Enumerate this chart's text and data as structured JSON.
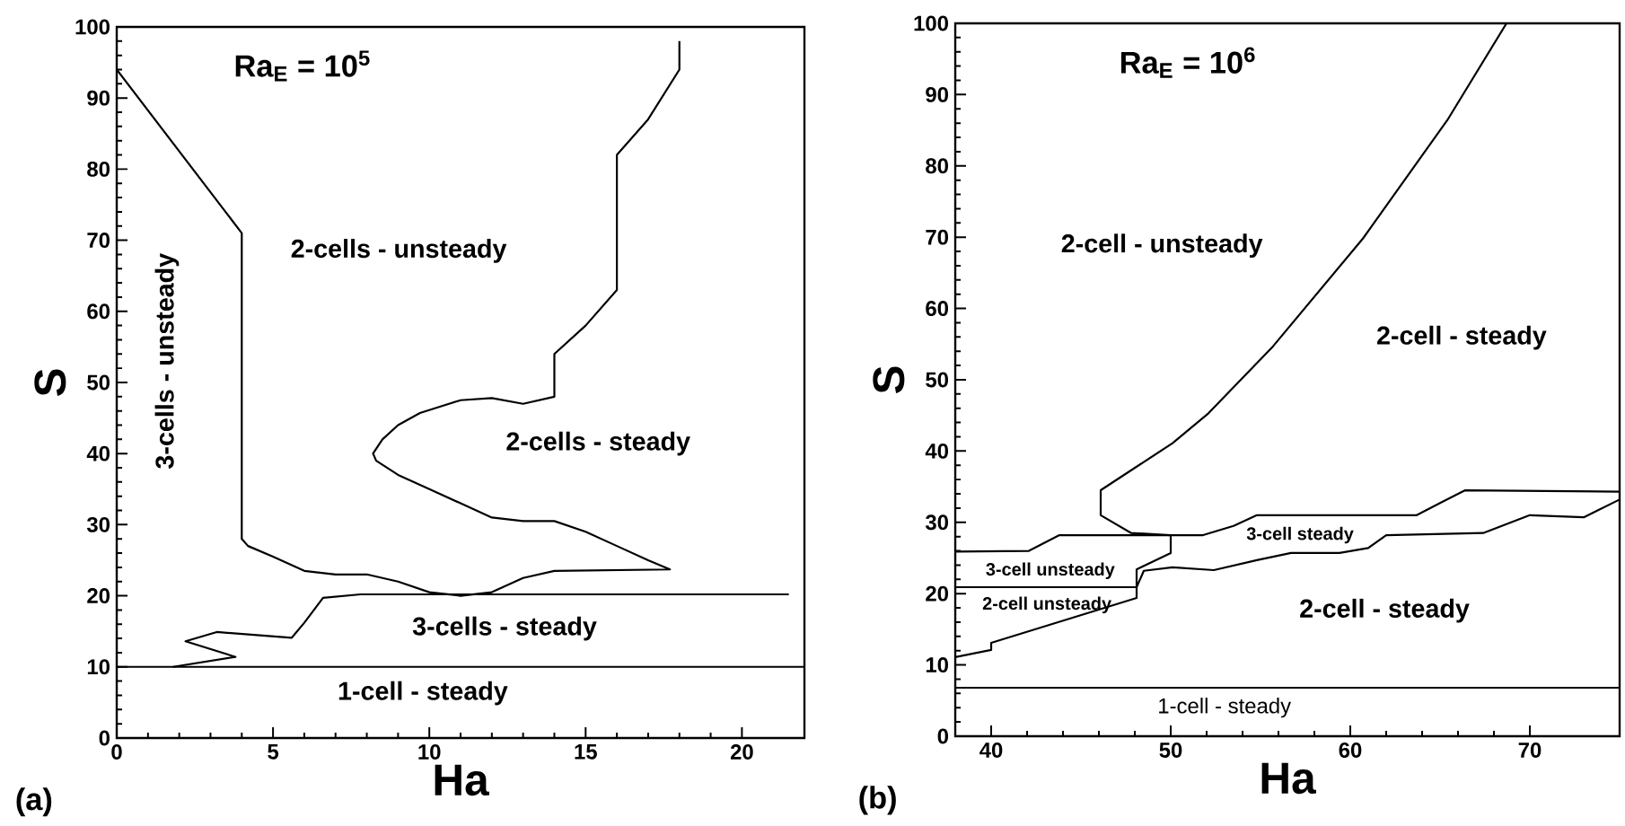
{
  "chart_data": [
    {
      "type": "line",
      "title": "Ra$_{E}$ = 10$^{5}$",
      "xlabel": "Ha",
      "ylabel": "S",
      "xlim": [
        0,
        22
      ],
      "ylim": [
        0,
        100
      ],
      "xticks": [
        0,
        5,
        10,
        15,
        20
      ],
      "yticks": [
        0,
        10,
        20,
        30,
        40,
        50,
        60,
        70,
        80,
        90,
        100
      ],
      "series": [
        {
          "color": "#000000",
          "x": [
            0,
            4,
            4,
            4.2,
            5,
            6,
            7,
            8,
            9,
            10,
            11,
            12,
            13,
            14,
            17.7,
            17,
            16,
            15,
            14,
            13,
            12,
            11,
            10,
            9,
            8.3,
            8.2,
            8.5,
            9,
            9.7,
            11,
            12,
            13,
            14,
            14,
            15,
            16,
            16,
            17,
            18,
            18
          ],
          "values": [
            94,
            71,
            28,
            27,
            25.5,
            23.5,
            23,
            23,
            22,
            20.5,
            20,
            20.5,
            22.5,
            23.5,
            23.7,
            25,
            27,
            29,
            30.5,
            30.5,
            31,
            33,
            35,
            37,
            39,
            40,
            42,
            44,
            45.7,
            47.5,
            47.8,
            47,
            48,
            54,
            58,
            63,
            82,
            87,
            94,
            98
          ]
        },
        {
          "color": "#000000",
          "x": [
            1.8,
            3.8,
            2.2,
            3.2,
            5.6,
            6.0,
            6.6,
            7.8,
            21.5
          ],
          "values": [
            10,
            11.4,
            13.6,
            14.9,
            14.1,
            16.2,
            19.7,
            20.2,
            20.2
          ]
        },
        {
          "color": "#000000",
          "x": [
            0,
            22
          ],
          "values": [
            10,
            10
          ]
        }
      ],
      "annotations": [
        "2-cells - unsteady",
        "2-cells - steady",
        "3-cells - unsteady",
        "3-cells - steady",
        "1-cell - steady",
        "(a)"
      ]
    },
    {
      "type": "line",
      "title": "Ra$_{E}$ = 10$^{6}$",
      "xlabel": "Ha",
      "ylabel": "S",
      "xlim": [
        38,
        75
      ],
      "ylim": [
        0,
        100
      ],
      "xticks": [
        40,
        50,
        60,
        70
      ],
      "yticks": [
        0,
        10,
        20,
        30,
        40,
        50,
        60,
        70,
        80,
        90,
        100
      ],
      "series": [
        {
          "color": "#000000",
          "x": [
            68.7,
            65.4,
            60.7,
            55.7,
            52.1,
            50.1,
            46.1,
            46.1,
            47.8,
            50,
            50,
            48.1,
            48.1,
            38
          ],
          "values": [
            100,
            86.4,
            69.8,
            54.7,
            45.3,
            41.1,
            34.5,
            31,
            28.5,
            28.2,
            25.7,
            23.4,
            20.9,
            20.9
          ]
        },
        {
          "color": "#000000",
          "x": [
            38,
            42.1,
            43.8,
            50,
            51.8,
            53.5,
            54.8,
            63.7,
            65,
            66.4,
            75
          ],
          "values": [
            25.9,
            26,
            28.2,
            28.2,
            28.2,
            29.5,
            31,
            31,
            32.7,
            34.5,
            34.3
          ]
        },
        {
          "color": "#000000",
          "x": [
            38,
            40,
            40,
            48.1,
            48.1,
            48.5,
            50.1,
            52.4,
            54.8,
            56.7,
            59.4,
            61,
            62,
            67.4,
            70,
            73,
            75
          ],
          "values": [
            11.1,
            12.1,
            13.1,
            19.4,
            20.9,
            23.2,
            23.7,
            23.3,
            24.7,
            25.7,
            25.7,
            26.4,
            28.2,
            28.5,
            31,
            30.7,
            33.2
          ]
        },
        {
          "color": "#000000",
          "x": [
            38,
            75
          ],
          "values": [
            6.8,
            6.8
          ]
        }
      ],
      "annotations": [
        "2-cell - unsteady",
        "2-cell - steady",
        "3-cell unsteady",
        "2-cell unsteady",
        "3-cell steady",
        "2-cell - steady",
        "1-cell - steady",
        "(b)"
      ]
    }
  ]
}
